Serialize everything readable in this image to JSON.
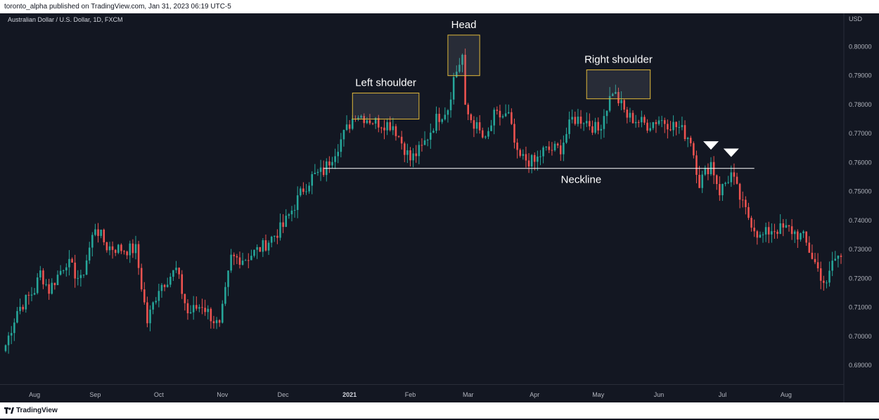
{
  "header": {
    "text": "toronto_alpha published on TradingView.com, Jan 31, 2023 06:19 UTC-5"
  },
  "footer": {
    "brand": "TradingView"
  },
  "symbol": {
    "text": "Australian Dollar / U.S. Dollar, 1D, FXCM"
  },
  "colors": {
    "up": "#26a69a",
    "down": "#ef5350",
    "annotation": "#e0b83a",
    "background": "#131722"
  },
  "chart_data": {
    "type": "candlestick",
    "currency_label": "USD",
    "y_ticks": [
      "0.69000",
      "0.70000",
      "0.71000",
      "0.72000",
      "0.73000",
      "0.74000",
      "0.75000",
      "0.76000",
      "0.77000",
      "0.78000",
      "0.79000",
      "0.80000"
    ],
    "ylim": [
      0.6835,
      0.8115
    ],
    "x_ticks": [
      "Aug",
      "Sep",
      "Oct",
      "Nov",
      "Dec",
      "2021",
      "Feb",
      "Mar",
      "Apr",
      "May",
      "Jun",
      "Jul",
      "Aug"
    ],
    "anchors": [
      [
        "2020-07-20",
        0.697
      ],
      [
        "2020-07-24",
        0.709
      ],
      [
        "2020-08-01",
        0.716
      ],
      [
        "2020-08-05",
        0.722
      ],
      [
        "2020-08-10",
        0.716
      ],
      [
        "2020-08-18",
        0.726
      ],
      [
        "2020-08-25",
        0.719
      ],
      [
        "2020-09-01",
        0.738
      ],
      [
        "2020-09-05",
        0.731
      ],
      [
        "2020-09-15",
        0.73
      ],
      [
        "2020-09-21",
        0.73
      ],
      [
        "2020-09-25",
        0.705
      ],
      [
        "2020-10-01",
        0.717
      ],
      [
        "2020-10-09",
        0.723
      ],
      [
        "2020-10-15",
        0.708
      ],
      [
        "2020-10-22",
        0.711
      ],
      [
        "2020-10-30",
        0.703
      ],
      [
        "2020-11-05",
        0.727
      ],
      [
        "2020-11-12",
        0.727
      ],
      [
        "2020-11-20",
        0.731
      ],
      [
        "2020-12-01",
        0.738
      ],
      [
        "2020-12-10",
        0.751
      ],
      [
        "2020-12-15",
        0.755
      ],
      [
        "2020-12-21",
        0.757
      ],
      [
        "2020-12-28",
        0.766
      ],
      [
        "2021-01-05",
        0.777
      ],
      [
        "2021-01-14",
        0.774
      ],
      [
        "2021-01-22",
        0.773
      ],
      [
        "2021-01-29",
        0.763
      ],
      [
        "2021-02-01",
        0.761
      ],
      [
        "2021-02-05",
        0.765
      ],
      [
        "2021-02-12",
        0.775
      ],
      [
        "2021-02-18",
        0.779
      ],
      [
        "2021-02-22",
        0.789
      ],
      [
        "2021-02-25",
        0.797
      ],
      [
        "2021-02-26",
        0.778
      ],
      [
        "2021-03-04",
        0.772
      ],
      [
        "2021-03-09",
        0.767
      ],
      [
        "2021-03-12",
        0.776
      ],
      [
        "2021-03-19",
        0.776
      ],
      [
        "2021-03-24",
        0.762
      ],
      [
        "2021-04-01",
        0.76
      ],
      [
        "2021-04-06",
        0.764
      ],
      [
        "2021-04-14",
        0.765
      ],
      [
        "2021-04-20",
        0.775
      ],
      [
        "2021-04-26",
        0.775
      ],
      [
        "2021-05-03",
        0.771
      ],
      [
        "2021-05-10",
        0.785
      ],
      [
        "2021-05-17",
        0.776
      ],
      [
        "2021-05-26",
        0.773
      ],
      [
        "2021-06-01",
        0.775
      ],
      [
        "2021-06-10",
        0.772
      ],
      [
        "2021-06-16",
        0.768
      ],
      [
        "2021-06-21",
        0.753
      ],
      [
        "2021-06-25",
        0.76
      ],
      [
        "2021-06-30",
        0.75
      ],
      [
        "2021-07-06",
        0.756
      ],
      [
        "2021-07-12",
        0.745
      ],
      [
        "2021-07-20",
        0.734
      ],
      [
        "2021-07-26",
        0.737
      ],
      [
        "2021-08-03",
        0.737
      ],
      [
        "2021-08-10",
        0.734
      ],
      [
        "2021-08-18",
        0.721
      ],
      [
        "2021-08-20",
        0.717
      ],
      [
        "2021-08-24",
        0.726
      ],
      [
        "2021-08-27",
        0.728
      ]
    ],
    "neckline": {
      "value": 0.758,
      "from": "2020-12-21",
      "to": "2021-07-16",
      "label": "Neckline"
    },
    "annotations": [
      {
        "label": "Left shoulder",
        "from": "2021-01-04",
        "to": "2021-02-04",
        "low": 0.775,
        "high": 0.784
      },
      {
        "label": "Head",
        "from": "2021-02-18",
        "to": "2021-03-05",
        "low": 0.79,
        "high": 0.804
      },
      {
        "label": "Right shoulder",
        "from": "2021-04-27",
        "to": "2021-05-27",
        "low": 0.782,
        "high": 0.792
      }
    ],
    "markers": [
      {
        "date": "2021-06-25",
        "value": 0.7625
      },
      {
        "date": "2021-07-06",
        "value": 0.76
      }
    ]
  }
}
